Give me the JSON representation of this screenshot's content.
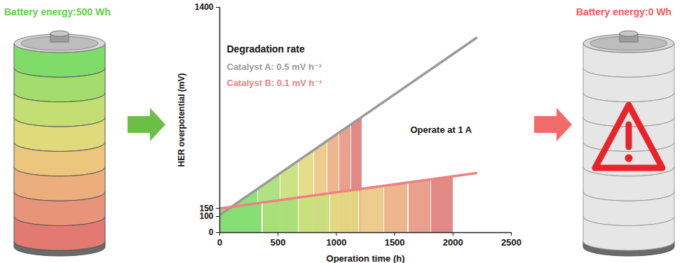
{
  "chart_data": {
    "type": "line",
    "x_label": "Operation time (h)",
    "y_label": "HER overpotential (mV)",
    "xlim": [
      0,
      2500
    ],
    "xticks": [
      0,
      500,
      1000,
      1500,
      2000,
      2500
    ],
    "ylim": [
      0,
      1400
    ],
    "yticks": [
      0,
      100,
      150,
      1400
    ],
    "annotations": {
      "heading": "Degradation rate",
      "condition": "Operate at 1 A"
    },
    "series": [
      {
        "name": "Catalyst A: 0.5 mV h⁻¹",
        "color": "#9a9a9a",
        "x": [
          0,
          2200
        ],
        "values": [
          110,
          1210
        ],
        "segments": {
          "bounds": [
            0,
            330,
            525,
            680,
            810,
            925,
            1030,
            1130,
            1220
          ],
          "colors": [
            "#86de72",
            "#a9df78",
            "#c9df7c",
            "#e3da80",
            "#ecc784",
            "#ecb084",
            "#e79882",
            "#e07f7c"
          ]
        }
      },
      {
        "name": "Catalyst B: 0.1 mV h⁻¹",
        "color": "#f08080",
        "x": [
          0,
          2200
        ],
        "values": [
          150,
          370
        ],
        "segments": {
          "bounds": [
            0,
            370,
            680,
            950,
            1195,
            1415,
            1620,
            1815,
            2000
          ],
          "colors": [
            "#86de72",
            "#a9df78",
            "#c9df7c",
            "#e3da80",
            "#ecc784",
            "#ecb084",
            "#e79882",
            "#e07f7c"
          ]
        }
      }
    ]
  },
  "panels": {
    "before": {
      "title": "Battery energy:500 Wh"
    },
    "after": {
      "title": "Battery energy:0 Wh"
    }
  }
}
